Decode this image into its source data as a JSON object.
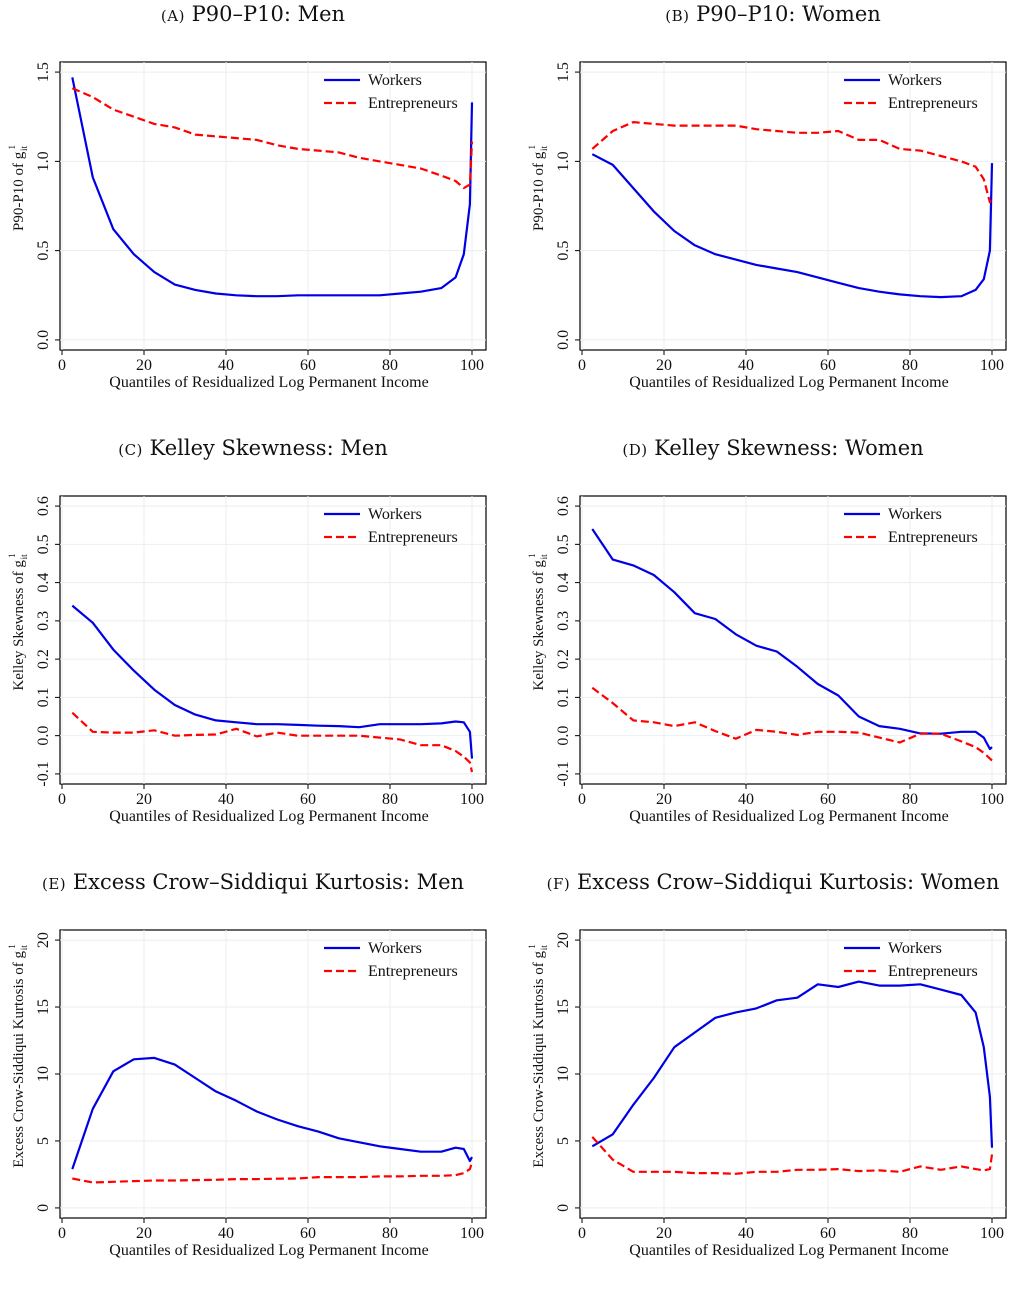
{
  "chart_data": [
    {
      "type": "line",
      "panel_letter": "A",
      "title": "P90–P10: Men",
      "xlabel": "Quantiles of Residualized Log Permanent Income",
      "ylabel": "P90-P10 of g",
      "ylabel_sup": "1",
      "ylabel_sub": "it",
      "xlim": [
        0,
        100
      ],
      "ylim": [
        0,
        1.5
      ],
      "xticks": [
        "0",
        "20",
        "40",
        "60",
        "80",
        "100"
      ],
      "yticks": [
        "0.0",
        "0.5",
        "1.0",
        "1.5"
      ],
      "ytick_values": [
        0,
        0.5,
        1.0,
        1.5
      ],
      "grid": true,
      "legend_position": "top-right",
      "series": [
        {
          "name": "Workers",
          "color": "#0000e6",
          "dash": "solid",
          "x": [
            2.5,
            7.5,
            12.5,
            17.5,
            22.5,
            27.5,
            32.5,
            37.5,
            42.5,
            47.5,
            52.5,
            57.5,
            62.5,
            67.5,
            72.5,
            77.5,
            82.5,
            87.5,
            92.5,
            96,
            98,
            99.5,
            100
          ],
          "y": [
            1.47,
            0.91,
            0.62,
            0.48,
            0.38,
            0.31,
            0.28,
            0.26,
            0.25,
            0.245,
            0.245,
            0.25,
            0.25,
            0.25,
            0.25,
            0.25,
            0.26,
            0.27,
            0.29,
            0.35,
            0.48,
            0.76,
            1.33
          ]
        },
        {
          "name": "Entrepreneurs",
          "color": "#ff0000",
          "dash": "dashed",
          "x": [
            2.5,
            7.5,
            12.5,
            17.5,
            22.5,
            27.5,
            32.5,
            37.5,
            42.5,
            47.5,
            52.5,
            57.5,
            62.5,
            67.5,
            72.5,
            77.5,
            82.5,
            87.5,
            92.5,
            96,
            98,
            99.5,
            100
          ],
          "y": [
            1.41,
            1.36,
            1.29,
            1.25,
            1.21,
            1.19,
            1.15,
            1.14,
            1.13,
            1.12,
            1.09,
            1.07,
            1.06,
            1.05,
            1.02,
            1.0,
            0.98,
            0.96,
            0.92,
            0.89,
            0.85,
            0.87,
            1.11
          ]
        }
      ]
    },
    {
      "type": "line",
      "panel_letter": "B",
      "title": "P90–P10: Women",
      "xlabel": "Quantiles of Residualized Log Permanent Income",
      "ylabel": "P90-P10 of g",
      "ylabel_sup": "1",
      "ylabel_sub": "it",
      "xlim": [
        0,
        100
      ],
      "ylim": [
        0,
        1.5
      ],
      "xticks": [
        "0",
        "20",
        "40",
        "60",
        "80",
        "100"
      ],
      "yticks": [
        "0.0",
        "0.5",
        "1.0",
        "1.5"
      ],
      "ytick_values": [
        0,
        0.5,
        1.0,
        1.5
      ],
      "grid": true,
      "legend_position": "top-right",
      "series": [
        {
          "name": "Workers",
          "color": "#0000e6",
          "dash": "solid",
          "x": [
            2.5,
            7.5,
            12.5,
            17.5,
            22.5,
            27.5,
            32.5,
            37.5,
            42.5,
            47.5,
            52.5,
            57.5,
            62.5,
            67.5,
            72.5,
            77.5,
            82.5,
            87.5,
            92.5,
            96,
            98,
            99.5,
            100
          ],
          "y": [
            1.04,
            0.98,
            0.85,
            0.72,
            0.61,
            0.53,
            0.48,
            0.45,
            0.42,
            0.4,
            0.38,
            0.35,
            0.32,
            0.29,
            0.27,
            0.255,
            0.245,
            0.24,
            0.245,
            0.28,
            0.34,
            0.5,
            0.99
          ]
        },
        {
          "name": "Entrepreneurs",
          "color": "#ff0000",
          "dash": "dashed",
          "x": [
            2.5,
            7.5,
            12.5,
            17.5,
            22.5,
            27.5,
            32.5,
            37.5,
            42.5,
            47.5,
            52.5,
            57.5,
            62.5,
            67.5,
            72.5,
            77.5,
            82.5,
            87.5,
            92.5,
            96,
            98,
            99.5,
            100
          ],
          "y": [
            1.07,
            1.17,
            1.22,
            1.21,
            1.2,
            1.2,
            1.2,
            1.2,
            1.18,
            1.17,
            1.16,
            1.16,
            1.17,
            1.12,
            1.12,
            1.07,
            1.06,
            1.03,
            1.0,
            0.97,
            0.9,
            0.77,
            0.8
          ]
        }
      ]
    },
    {
      "type": "line",
      "panel_letter": "C",
      "title": "Kelley Skewness: Men",
      "xlabel": "Quantiles of Residualized Log Permanent Income",
      "ylabel": "Kelley Skewness of g",
      "ylabel_sup": "1",
      "ylabel_sub": "it",
      "xlim": [
        0,
        100
      ],
      "ylim": [
        -0.1,
        0.6
      ],
      "xticks": [
        "0",
        "20",
        "40",
        "60",
        "80",
        "100"
      ],
      "yticks": [
        "-0.1",
        "0.0",
        "0.1",
        "0.2",
        "0.3",
        "0.4",
        "0.5",
        "0.6"
      ],
      "ytick_values": [
        -0.1,
        0,
        0.1,
        0.2,
        0.3,
        0.4,
        0.5,
        0.6
      ],
      "grid": true,
      "legend_position": "top-right",
      "series": [
        {
          "name": "Workers",
          "color": "#0000e6",
          "dash": "solid",
          "x": [
            2.5,
            7.5,
            12.5,
            17.5,
            22.5,
            27.5,
            32.5,
            37.5,
            42.5,
            47.5,
            52.5,
            57.5,
            62.5,
            67.5,
            72.5,
            77.5,
            82.5,
            87.5,
            92.5,
            96,
            98,
            99.5,
            100
          ],
          "y": [
            0.34,
            0.295,
            0.225,
            0.17,
            0.12,
            0.08,
            0.055,
            0.04,
            0.035,
            0.03,
            0.03,
            0.028,
            0.026,
            0.025,
            0.022,
            0.03,
            0.03,
            0.03,
            0.032,
            0.037,
            0.035,
            0.01,
            -0.06
          ]
        },
        {
          "name": "Entrepreneurs",
          "color": "#ff0000",
          "dash": "dashed",
          "x": [
            2.5,
            7.5,
            12.5,
            17.5,
            22.5,
            27.5,
            32.5,
            37.5,
            42.5,
            47.5,
            52.5,
            57.5,
            62.5,
            67.5,
            72.5,
            77.5,
            82.5,
            87.5,
            92.5,
            96,
            98,
            99.5,
            100
          ],
          "y": [
            0.06,
            0.01,
            0.008,
            0.008,
            0.014,
            0.0,
            0.002,
            0.003,
            0.018,
            -0.002,
            0.008,
            0.0,
            0.0,
            0.0,
            0.0,
            -0.005,
            -0.01,
            -0.025,
            -0.025,
            -0.04,
            -0.055,
            -0.07,
            -0.095
          ]
        }
      ]
    },
    {
      "type": "line",
      "panel_letter": "D",
      "title": "Kelley Skewness: Women",
      "xlabel": "Quantiles of Residualized Log Permanent Income",
      "ylabel": "Kelley Skewness of g",
      "ylabel_sup": "1",
      "ylabel_sub": "it",
      "xlim": [
        0,
        100
      ],
      "ylim": [
        -0.1,
        0.6
      ],
      "xticks": [
        "0",
        "20",
        "40",
        "60",
        "80",
        "100"
      ],
      "yticks": [
        "-0.1",
        "0.0",
        "0.1",
        "0.2",
        "0.3",
        "0.4",
        "0.5",
        "0.6"
      ],
      "ytick_values": [
        -0.1,
        0,
        0.1,
        0.2,
        0.3,
        0.4,
        0.5,
        0.6
      ],
      "grid": true,
      "legend_position": "top-right",
      "series": [
        {
          "name": "Workers",
          "color": "#0000e6",
          "dash": "solid",
          "x": [
            2.5,
            7.5,
            12.5,
            17.5,
            22.5,
            27.5,
            32.5,
            37.5,
            42.5,
            47.5,
            52.5,
            57.5,
            62.5,
            67.5,
            72.5,
            77.5,
            82.5,
            87.5,
            92.5,
            96,
            98,
            99.5,
            100
          ],
          "y": [
            0.54,
            0.46,
            0.445,
            0.42,
            0.375,
            0.32,
            0.305,
            0.265,
            0.235,
            0.22,
            0.18,
            0.135,
            0.105,
            0.05,
            0.025,
            0.018,
            0.006,
            0.005,
            0.01,
            0.01,
            -0.005,
            -0.035,
            -0.03
          ]
        },
        {
          "name": "Entrepreneurs",
          "color": "#ff0000",
          "dash": "dashed",
          "x": [
            2.5,
            7.5,
            12.5,
            17.5,
            22.5,
            27.5,
            32.5,
            37.5,
            42.5,
            47.5,
            52.5,
            57.5,
            62.5,
            67.5,
            72.5,
            77.5,
            82.5,
            87.5,
            92.5,
            96,
            98,
            99.5,
            100
          ],
          "y": [
            0.125,
            0.085,
            0.04,
            0.035,
            0.025,
            0.035,
            0.012,
            -0.008,
            0.015,
            0.01,
            0.002,
            0.01,
            0.01,
            0.008,
            -0.005,
            -0.018,
            0.005,
            0.005,
            -0.015,
            -0.03,
            -0.045,
            -0.06,
            -0.065
          ]
        }
      ]
    },
    {
      "type": "line",
      "panel_letter": "E",
      "title": "Excess Crow–Siddiqui Kurtosis: Men",
      "xlabel": "Quantiles of Residualized Log Permanent Income",
      "ylabel": "Excess Crow-Siddiqui Kurtosis of g",
      "ylabel_sup": "1",
      "ylabel_sub": "it",
      "xlim": [
        0,
        100
      ],
      "ylim": [
        0,
        20
      ],
      "xticks": [
        "0",
        "20",
        "40",
        "60",
        "80",
        "100"
      ],
      "yticks": [
        "0",
        "5",
        "10",
        "15",
        "20"
      ],
      "ytick_values": [
        0,
        5,
        10,
        15,
        20
      ],
      "grid": true,
      "legend_position": "top-right",
      "series": [
        {
          "name": "Workers",
          "color": "#0000e6",
          "dash": "solid",
          "x": [
            2.5,
            7.5,
            12.5,
            17.5,
            22.5,
            27.5,
            32.5,
            37.5,
            42.5,
            47.5,
            52.5,
            57.5,
            62.5,
            67.5,
            72.5,
            77.5,
            82.5,
            87.5,
            92.5,
            96,
            98,
            99.5,
            100
          ],
          "y": [
            2.9,
            7.4,
            10.2,
            11.1,
            11.2,
            10.7,
            9.7,
            8.7,
            8.0,
            7.2,
            6.6,
            6.1,
            5.7,
            5.2,
            4.9,
            4.6,
            4.4,
            4.2,
            4.2,
            4.5,
            4.4,
            3.5,
            3.8
          ]
        },
        {
          "name": "Entrepreneurs",
          "color": "#ff0000",
          "dash": "dashed",
          "x": [
            2.5,
            7.5,
            12.5,
            17.5,
            22.5,
            27.5,
            32.5,
            37.5,
            42.5,
            47.5,
            52.5,
            57.5,
            62.5,
            67.5,
            72.5,
            77.5,
            82.5,
            87.5,
            92.5,
            96,
            98,
            99.5,
            100
          ],
          "y": [
            2.2,
            1.9,
            1.95,
            2.0,
            2.05,
            2.05,
            2.08,
            2.1,
            2.15,
            2.15,
            2.18,
            2.2,
            2.3,
            2.3,
            2.3,
            2.35,
            2.35,
            2.4,
            2.4,
            2.45,
            2.6,
            2.9,
            3.4
          ]
        }
      ]
    },
    {
      "type": "line",
      "panel_letter": "F",
      "title": "Excess Crow–Siddiqui Kurtosis: Women",
      "xlabel": "Quantiles of Residualized Log Permanent Income",
      "ylabel": "Excess Crow-Siddiqui Kurtosis of g",
      "ylabel_sup": "1",
      "ylabel_sub": "it",
      "xlim": [
        0,
        100
      ],
      "ylim": [
        0,
        20
      ],
      "xticks": [
        "0",
        "20",
        "40",
        "60",
        "80",
        "100"
      ],
      "yticks": [
        "0",
        "5",
        "10",
        "15",
        "20"
      ],
      "ytick_values": [
        0,
        5,
        10,
        15,
        20
      ],
      "grid": true,
      "legend_position": "top-right",
      "series": [
        {
          "name": "Workers",
          "color": "#0000e6",
          "dash": "solid",
          "x": [
            2.5,
            7.5,
            12.5,
            17.5,
            22.5,
            27.5,
            32.5,
            37.5,
            42.5,
            47.5,
            52.5,
            57.5,
            62.5,
            67.5,
            72.5,
            77.5,
            82.5,
            87.5,
            92.5,
            96,
            98,
            99.5,
            100
          ],
          "y": [
            4.6,
            5.5,
            7.7,
            9.7,
            12.0,
            13.1,
            14.2,
            14.6,
            14.9,
            15.5,
            15.7,
            16.7,
            16.5,
            16.9,
            16.6,
            16.6,
            16.7,
            16.3,
            15.9,
            14.6,
            12.0,
            8.3,
            4.5
          ]
        },
        {
          "name": "Entrepreneurs",
          "color": "#ff0000",
          "dash": "dashed",
          "x": [
            2.5,
            7.5,
            12.5,
            17.5,
            22.5,
            27.5,
            32.5,
            37.5,
            42.5,
            47.5,
            52.5,
            57.5,
            62.5,
            67.5,
            72.5,
            77.5,
            82.5,
            87.5,
            92.5,
            96,
            98,
            99.5,
            100
          ],
          "y": [
            5.3,
            3.6,
            2.7,
            2.7,
            2.7,
            2.6,
            2.6,
            2.55,
            2.7,
            2.7,
            2.85,
            2.85,
            2.9,
            2.75,
            2.8,
            2.7,
            3.1,
            2.85,
            3.1,
            2.9,
            2.8,
            2.9,
            4.0
          ]
        }
      ]
    }
  ]
}
